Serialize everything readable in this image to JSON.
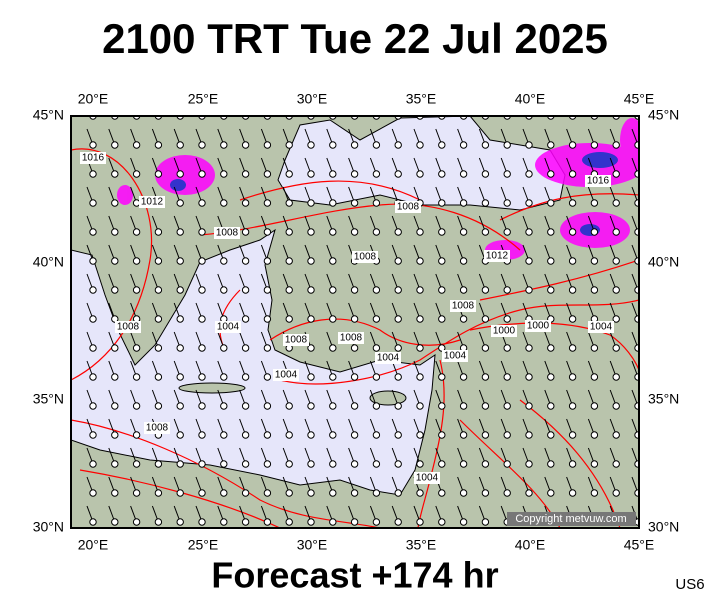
{
  "title": "2100 TRT Tue 22 Jul 2025",
  "map": {
    "lon_labels": [
      "20°E",
      "25°E",
      "30°E",
      "35°E",
      "40°E",
      "45°E"
    ],
    "lat_labels": [
      "45°N",
      "40°N",
      "35°N",
      "30°N"
    ],
    "isobar_labels": [
      1016,
      1012,
      1008,
      1008,
      1008,
      1012,
      1016,
      1008,
      1004,
      1008,
      1008,
      1004,
      1004,
      1008,
      1000,
      1000,
      1004,
      1004,
      1008,
      1004
    ],
    "copyright": "Copyright metvuw.com"
  },
  "footer": "Forecast +174 hr",
  "code": "US6"
}
